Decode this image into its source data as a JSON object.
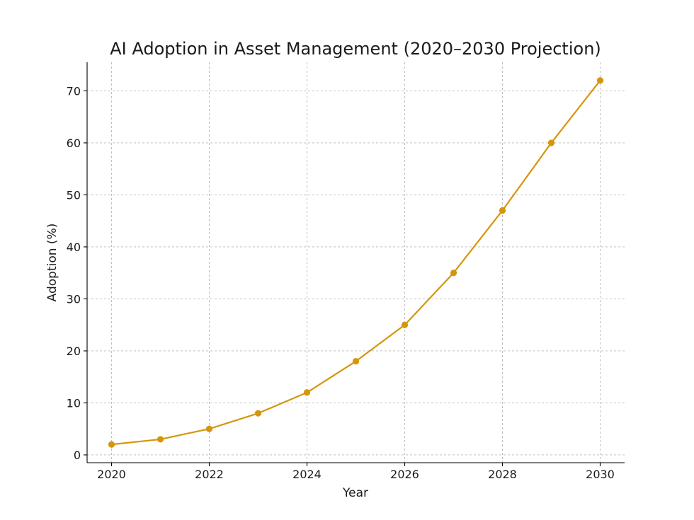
{
  "chart_data": {
    "type": "line",
    "title": "AI Adoption in Asset Management (2020–2030 Projection)",
    "xlabel": "Year",
    "ylabel": "Adoption (%)",
    "x": [
      2020,
      2021,
      2022,
      2023,
      2024,
      2025,
      2026,
      2027,
      2028,
      2029,
      2030
    ],
    "series": [
      {
        "values": [
          2,
          3,
          5,
          8,
          12,
          18,
          25,
          35,
          47,
          60,
          72
        ],
        "color": "#d4960b",
        "marker": "circle"
      }
    ],
    "xlim": [
      2019.5,
      2030.5
    ],
    "ylim": [
      -1.5,
      75.5
    ],
    "xticks": [
      "2020",
      "2022",
      "2024",
      "2026",
      "2028",
      "2030"
    ],
    "yticks": [
      "0",
      "10",
      "20",
      "30",
      "40",
      "50",
      "60",
      "70"
    ],
    "grid": true
  }
}
